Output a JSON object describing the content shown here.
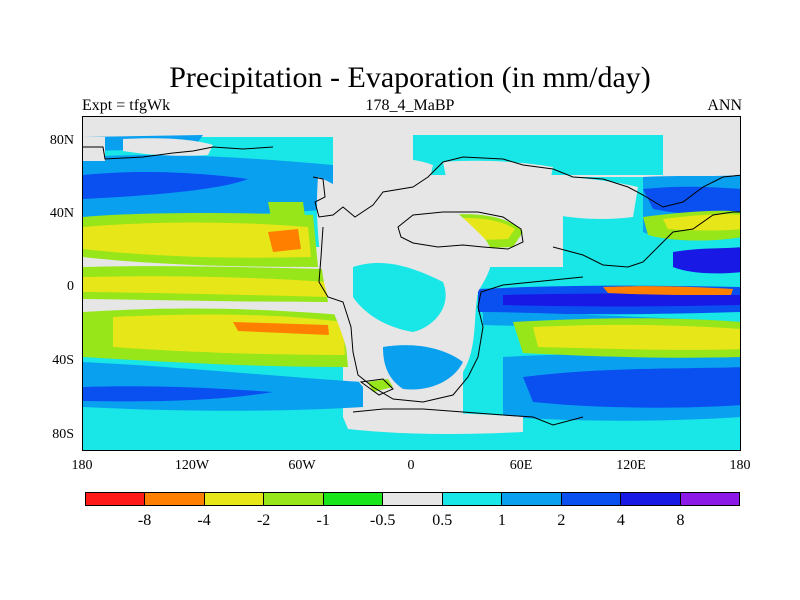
{
  "title": "Precipitation - Evaporation (in mm/day)",
  "left_string": "Expt = tfgWk",
  "center_string": "178_4_MaBP",
  "right_string": "ANN",
  "lat_labels": [
    "80N",
    "40N",
    "0",
    "40S",
    "80S"
  ],
  "lon_labels": [
    "180",
    "120W",
    "60W",
    "0",
    "60E",
    "120E",
    "180"
  ],
  "colorbar": {
    "colors": [
      "#ff1a1a",
      "#ff8000",
      "#e6e619",
      "#96e619",
      "#19e619",
      "#e6e6e6",
      "#19e6e6",
      "#0aa0f0",
      "#0a50f0",
      "#1919e6",
      "#8c19e6"
    ],
    "labels": [
      "-8",
      "-4",
      "-2",
      "-1",
      "-0.5",
      "0.5",
      "1",
      "2",
      "4",
      "8"
    ]
  },
  "colors": {
    "neutral": "#e6e6e6",
    "cyan": "#19e6e6",
    "lightblue": "#0aa0f0",
    "blue": "#0a50f0",
    "darkblue": "#1919e6",
    "green": "#19e619",
    "lightgreen": "#96e619",
    "yellow": "#e6e619",
    "orange": "#ff8000",
    "coast": "#000000"
  }
}
